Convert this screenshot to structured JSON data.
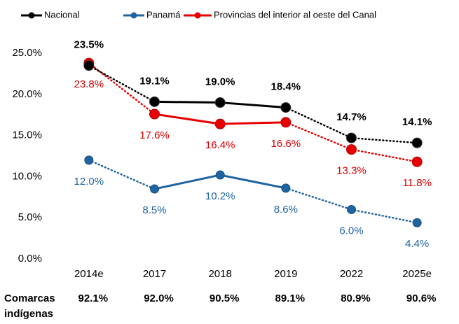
{
  "chart_data": {
    "type": "line",
    "categories": [
      "2014e",
      "2017",
      "2018",
      "2019",
      "2022",
      "2025e"
    ],
    "series": [
      {
        "name": "Nacional",
        "color": "#000000",
        "values": [
          23.5,
          19.1,
          19.0,
          18.4,
          14.7,
          14.1
        ],
        "value_labels": [
          "23.5%",
          "19.1%",
          "19.0%",
          "18.4%",
          "14.7%",
          "14.1%"
        ]
      },
      {
        "name": "Panamá",
        "color": "#1f64a0",
        "values": [
          12.0,
          8.5,
          10.2,
          8.6,
          6.0,
          4.4
        ],
        "value_labels": [
          "12.0%",
          "8.5%",
          "10.2%",
          "8.6%",
          "6.0%",
          "4.4%"
        ]
      },
      {
        "name": "Provincias del interior al oeste del Canal",
        "color": "#e60000",
        "values": [
          23.8,
          17.6,
          16.4,
          16.6,
          13.3,
          11.8
        ],
        "value_labels": [
          "23.8%",
          "17.6%",
          "16.4%",
          "16.6%",
          "13.3%",
          "11.8%"
        ]
      }
    ],
    "solid_span": [
      1,
      3
    ],
    "ylim": [
      0,
      25
    ],
    "yticks": [
      {
        "value": 0,
        "label": "0.0%"
      },
      {
        "value": 5,
        "label": "5.0%"
      },
      {
        "value": 10,
        "label": "10.0%"
      },
      {
        "value": 15,
        "label": "15.0%"
      },
      {
        "value": 20,
        "label": "20.0%"
      },
      {
        "value": 25,
        "label": "25.0%"
      }
    ],
    "legend": "top",
    "footer_row": {
      "label": "Comarcas indígenas",
      "values": [
        92.1,
        92.0,
        90.5,
        89.1,
        80.9,
        90.6
      ],
      "value_labels": [
        "92.1%",
        "92.0%",
        "90.5%",
        "89.1%",
        "80.9%",
        "90.6%"
      ]
    }
  }
}
